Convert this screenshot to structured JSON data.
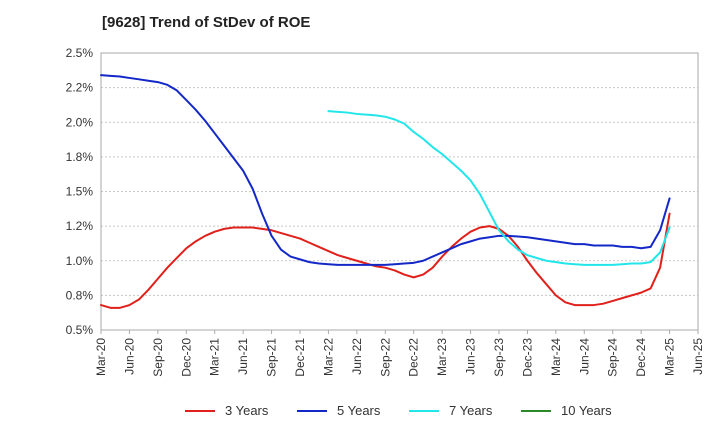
{
  "chart_data": {
    "type": "line",
    "title": "[9628]  Trend of StDev of ROE",
    "y_ticks": [
      "0.5%",
      "0.8%",
      "1.0%",
      "1.2%",
      "1.5%",
      "1.8%",
      "2.0%",
      "2.2%",
      "2.5%"
    ],
    "y_tick_values": [
      0.5,
      0.75,
      1.0,
      1.25,
      1.5,
      1.75,
      2.0,
      2.25,
      2.5
    ],
    "ylim": [
      0.5,
      2.5
    ],
    "x_ticks": [
      "Mar-20",
      "Jun-20",
      "Sep-20",
      "Dec-20",
      "Mar-21",
      "Jun-21",
      "Sep-21",
      "Dec-21",
      "Mar-22",
      "Jun-22",
      "Sep-22",
      "Dec-22",
      "Mar-23",
      "Jun-23",
      "Sep-23",
      "Dec-23",
      "Mar-24",
      "Jun-24",
      "Sep-24",
      "Dec-24",
      "Mar-25",
      "Jun-25"
    ],
    "grid": "horizontal",
    "legend_position": "bottom",
    "series": [
      {
        "name": "3 Years",
        "color": "#e0201b",
        "points": [
          [
            "Mar-20",
            0.68
          ],
          [
            "Apr-20",
            0.66
          ],
          [
            "May-20",
            0.66
          ],
          [
            "Jun-20",
            0.68
          ],
          [
            "Jul-20",
            0.72
          ],
          [
            "Aug-20",
            0.79
          ],
          [
            "Sep-20",
            0.87
          ],
          [
            "Oct-20",
            0.95
          ],
          [
            "Nov-20",
            1.02
          ],
          [
            "Dec-20",
            1.09
          ],
          [
            "Jan-21",
            1.14
          ],
          [
            "Feb-21",
            1.18
          ],
          [
            "Mar-21",
            1.21
          ],
          [
            "Apr-21",
            1.23
          ],
          [
            "May-21",
            1.24
          ],
          [
            "Jun-21",
            1.24
          ],
          [
            "Jul-21",
            1.24
          ],
          [
            "Aug-21",
            1.23
          ],
          [
            "Sep-21",
            1.22
          ],
          [
            "Oct-21",
            1.2
          ],
          [
            "Nov-21",
            1.18
          ],
          [
            "Dec-21",
            1.16
          ],
          [
            "Jan-22",
            1.13
          ],
          [
            "Feb-22",
            1.1
          ],
          [
            "Mar-22",
            1.07
          ],
          [
            "Apr-22",
            1.04
          ],
          [
            "May-22",
            1.02
          ],
          [
            "Jun-22",
            1.0
          ],
          [
            "Jul-22",
            0.98
          ],
          [
            "Aug-22",
            0.96
          ],
          [
            "Sep-22",
            0.95
          ],
          [
            "Oct-22",
            0.93
          ],
          [
            "Nov-22",
            0.9
          ],
          [
            "Dec-22",
            0.88
          ],
          [
            "Jan-23",
            0.9
          ],
          [
            "Feb-23",
            0.95
          ],
          [
            "Mar-23",
            1.03
          ],
          [
            "Apr-23",
            1.1
          ],
          [
            "May-23",
            1.16
          ],
          [
            "Jun-23",
            1.21
          ],
          [
            "Jul-23",
            1.24
          ],
          [
            "Aug-23",
            1.25
          ],
          [
            "Sep-23",
            1.23
          ],
          [
            "Oct-23",
            1.18
          ],
          [
            "Nov-23",
            1.1
          ],
          [
            "Dec-23",
            1.0
          ],
          [
            "Jan-24",
            0.91
          ],
          [
            "Feb-24",
            0.83
          ],
          [
            "Mar-24",
            0.75
          ],
          [
            "Apr-24",
            0.7
          ],
          [
            "May-24",
            0.68
          ],
          [
            "Jun-24",
            0.68
          ],
          [
            "Jul-24",
            0.68
          ],
          [
            "Aug-24",
            0.69
          ],
          [
            "Sep-24",
            0.71
          ],
          [
            "Oct-24",
            0.73
          ],
          [
            "Nov-24",
            0.75
          ],
          [
            "Dec-24",
            0.77
          ],
          [
            "Jan-25",
            0.8
          ],
          [
            "Feb-25",
            0.95
          ],
          [
            "Mar-25",
            1.34
          ]
        ]
      },
      {
        "name": "5 Years",
        "color": "#1428c8",
        "points": [
          [
            "Mar-20",
            2.34
          ],
          [
            "Apr-20",
            2.335
          ],
          [
            "May-20",
            2.33
          ],
          [
            "Jun-20",
            2.32
          ],
          [
            "Jul-20",
            2.31
          ],
          [
            "Aug-20",
            2.3
          ],
          [
            "Sep-20",
            2.29
          ],
          [
            "Oct-20",
            2.27
          ],
          [
            "Nov-20",
            2.23
          ],
          [
            "Dec-20",
            2.16
          ],
          [
            "Jan-21",
            2.09
          ],
          [
            "Feb-21",
            2.01
          ],
          [
            "Mar-21",
            1.92
          ],
          [
            "Apr-21",
            1.83
          ],
          [
            "May-21",
            1.74
          ],
          [
            "Jun-21",
            1.65
          ],
          [
            "Jul-21",
            1.52
          ],
          [
            "Aug-21",
            1.34
          ],
          [
            "Sep-21",
            1.18
          ],
          [
            "Oct-21",
            1.08
          ],
          [
            "Nov-21",
            1.03
          ],
          [
            "Dec-21",
            1.01
          ],
          [
            "Jan-22",
            0.99
          ],
          [
            "Feb-22",
            0.98
          ],
          [
            "Mar-22",
            0.975
          ],
          [
            "Apr-22",
            0.97
          ],
          [
            "May-22",
            0.97
          ],
          [
            "Jun-22",
            0.97
          ],
          [
            "Jul-22",
            0.97
          ],
          [
            "Aug-22",
            0.97
          ],
          [
            "Sep-22",
            0.97
          ],
          [
            "Oct-22",
            0.975
          ],
          [
            "Nov-22",
            0.98
          ],
          [
            "Dec-22",
            0.985
          ],
          [
            "Jan-23",
            1.0
          ],
          [
            "Feb-23",
            1.03
          ],
          [
            "Mar-23",
            1.06
          ],
          [
            "Apr-23",
            1.09
          ],
          [
            "May-23",
            1.12
          ],
          [
            "Jun-23",
            1.14
          ],
          [
            "Jul-23",
            1.16
          ],
          [
            "Aug-23",
            1.17
          ],
          [
            "Sep-23",
            1.18
          ],
          [
            "Oct-23",
            1.18
          ],
          [
            "Nov-23",
            1.175
          ],
          [
            "Dec-23",
            1.17
          ],
          [
            "Jan-24",
            1.16
          ],
          [
            "Feb-24",
            1.15
          ],
          [
            "Mar-24",
            1.14
          ],
          [
            "Apr-24",
            1.13
          ],
          [
            "May-24",
            1.12
          ],
          [
            "Jun-24",
            1.12
          ],
          [
            "Jul-24",
            1.11
          ],
          [
            "Aug-24",
            1.11
          ],
          [
            "Sep-24",
            1.11
          ],
          [
            "Oct-24",
            1.1
          ],
          [
            "Nov-24",
            1.1
          ],
          [
            "Dec-24",
            1.09
          ],
          [
            "Jan-25",
            1.1
          ],
          [
            "Feb-25",
            1.22
          ],
          [
            "Mar-25",
            1.45
          ]
        ]
      },
      {
        "name": "7 Years",
        "color": "#22e6ea",
        "points": [
          [
            "Mar-22",
            2.08
          ],
          [
            "Apr-22",
            2.075
          ],
          [
            "May-22",
            2.07
          ],
          [
            "Jun-22",
            2.06
          ],
          [
            "Jul-22",
            2.055
          ],
          [
            "Aug-22",
            2.05
          ],
          [
            "Sep-22",
            2.04
          ],
          [
            "Oct-22",
            2.02
          ],
          [
            "Nov-22",
            1.99
          ],
          [
            "Dec-22",
            1.93
          ],
          [
            "Jan-23",
            1.88
          ],
          [
            "Feb-23",
            1.82
          ],
          [
            "Mar-23",
            1.77
          ],
          [
            "Apr-23",
            1.71
          ],
          [
            "May-23",
            1.65
          ],
          [
            "Jun-23",
            1.58
          ],
          [
            "Jul-23",
            1.48
          ],
          [
            "Aug-23",
            1.35
          ],
          [
            "Sep-23",
            1.22
          ],
          [
            "Oct-23",
            1.14
          ],
          [
            "Nov-23",
            1.08
          ],
          [
            "Dec-23",
            1.04
          ],
          [
            "Jan-24",
            1.02
          ],
          [
            "Feb-24",
            1.0
          ],
          [
            "Mar-24",
            0.99
          ],
          [
            "Apr-24",
            0.98
          ],
          [
            "May-24",
            0.975
          ],
          [
            "Jun-24",
            0.97
          ],
          [
            "Jul-24",
            0.97
          ],
          [
            "Aug-24",
            0.97
          ],
          [
            "Sep-24",
            0.97
          ],
          [
            "Oct-24",
            0.975
          ],
          [
            "Nov-24",
            0.98
          ],
          [
            "Dec-24",
            0.98
          ],
          [
            "Jan-25",
            0.99
          ],
          [
            "Feb-25",
            1.06
          ],
          [
            "Mar-25",
            1.24
          ]
        ]
      },
      {
        "name": "10 Years",
        "color": "#2a8a2a",
        "points": []
      }
    ]
  }
}
